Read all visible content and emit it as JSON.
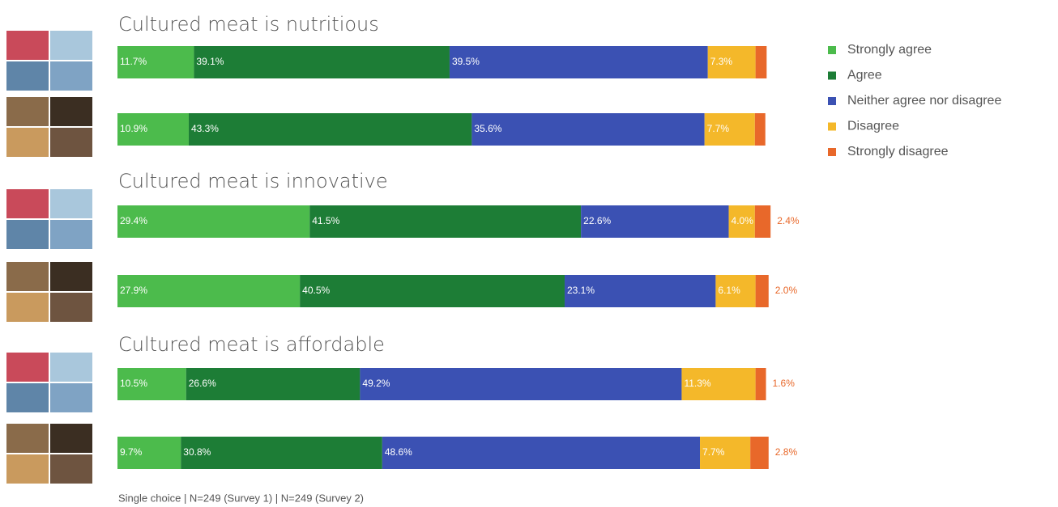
{
  "chart_data": {
    "type": "bar",
    "orientation": "horizontal",
    "stacked": true,
    "groups": [
      "Cultured meat is nutritious",
      "Cultured meat is innovative",
      "Cultured meat is affordable"
    ],
    "xlim": [
      0,
      100
    ],
    "series": [
      {
        "name": "Strongly agree",
        "color": "#4cbb4c",
        "values": [
          11.7,
          10.9,
          29.4,
          27.9,
          10.5,
          9.7
        ],
        "value_labels": [
          "11.7%",
          "10.9%",
          "29.4%",
          "27.9%",
          "10.5%",
          "9.7%"
        ]
      },
      {
        "name": "Agree",
        "color": "#1d7d36",
        "values": [
          39.1,
          43.3,
          41.5,
          40.5,
          26.6,
          30.8
        ],
        "value_labels": [
          "39.1%",
          "43.3%",
          "41.5%",
          "40.5%",
          "26.6%",
          "30.8%"
        ]
      },
      {
        "name": "Neither agree nor disagree",
        "color": "#3b51b3",
        "values": [
          39.5,
          35.6,
          22.6,
          23.1,
          49.2,
          48.6
        ],
        "value_labels": [
          "39.5%",
          "35.6%",
          "22.6%",
          "23.1%",
          "49.2%",
          "48.6%"
        ]
      },
      {
        "name": "Disagree",
        "color": "#f4b82a",
        "values": [
          7.3,
          7.7,
          4.0,
          6.1,
          11.3,
          7.7
        ],
        "value_labels": [
          "7.3%",
          "7.7%",
          "4.0%",
          "6.1%",
          "11.3%",
          "7.7%"
        ]
      },
      {
        "name": "Strongly disagree",
        "color": "#e8682a",
        "values": [
          1.7,
          1.6,
          2.4,
          2.0,
          1.6,
          2.8
        ],
        "value_labels": [
          null,
          null,
          "2.4%",
          "2.0%",
          "1.6%",
          "2.8%"
        ]
      }
    ],
    "note": "Single choice | N=249 (Survey 1) | N=249 (Survey 2)"
  }
}
